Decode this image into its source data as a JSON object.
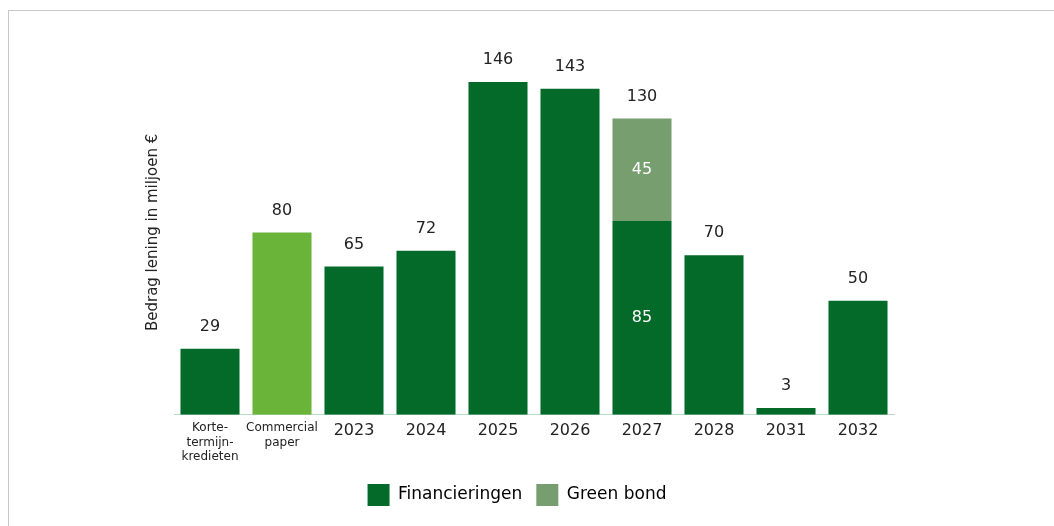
{
  "chart_data": {
    "type": "bar",
    "stacked": true,
    "categories": [
      "Korte-termijn-kredieten",
      "Commercial paper",
      "2023",
      "2024",
      "2025",
      "2026",
      "2027",
      "2028",
      "2031",
      "2032"
    ],
    "ylabel": "Bedrag lening in miljoen €",
    "series": [
      {
        "name": "Financieringen",
        "color": "#046a2a",
        "colors": [
          "#046a2a",
          "#6ab43a",
          "#046a2a",
          "#046a2a",
          "#046a2a",
          "#046a2a",
          "#046a2a",
          "#046a2a",
          "#046a2a",
          "#046a2a"
        ],
        "values": [
          29,
          80,
          65,
          72,
          146,
          143,
          85,
          70,
          3,
          50
        ],
        "value_labels": [
          null,
          null,
          null,
          null,
          null,
          null,
          "85",
          null,
          null,
          null
        ]
      },
      {
        "name": "Green bond",
        "color": "#779e6e",
        "values": [
          null,
          null,
          null,
          null,
          null,
          null,
          45,
          null,
          null,
          null
        ],
        "value_labels": [
          null,
          null,
          null,
          null,
          null,
          null,
          "45",
          null,
          null,
          null
        ]
      }
    ],
    "totals": [
      "29",
      "80",
      "65",
      "72",
      "146",
      "143",
      "130",
      "70",
      "3",
      "50"
    ],
    "grid": false,
    "legend": "bottom",
    "tick_labels": "x"
  }
}
